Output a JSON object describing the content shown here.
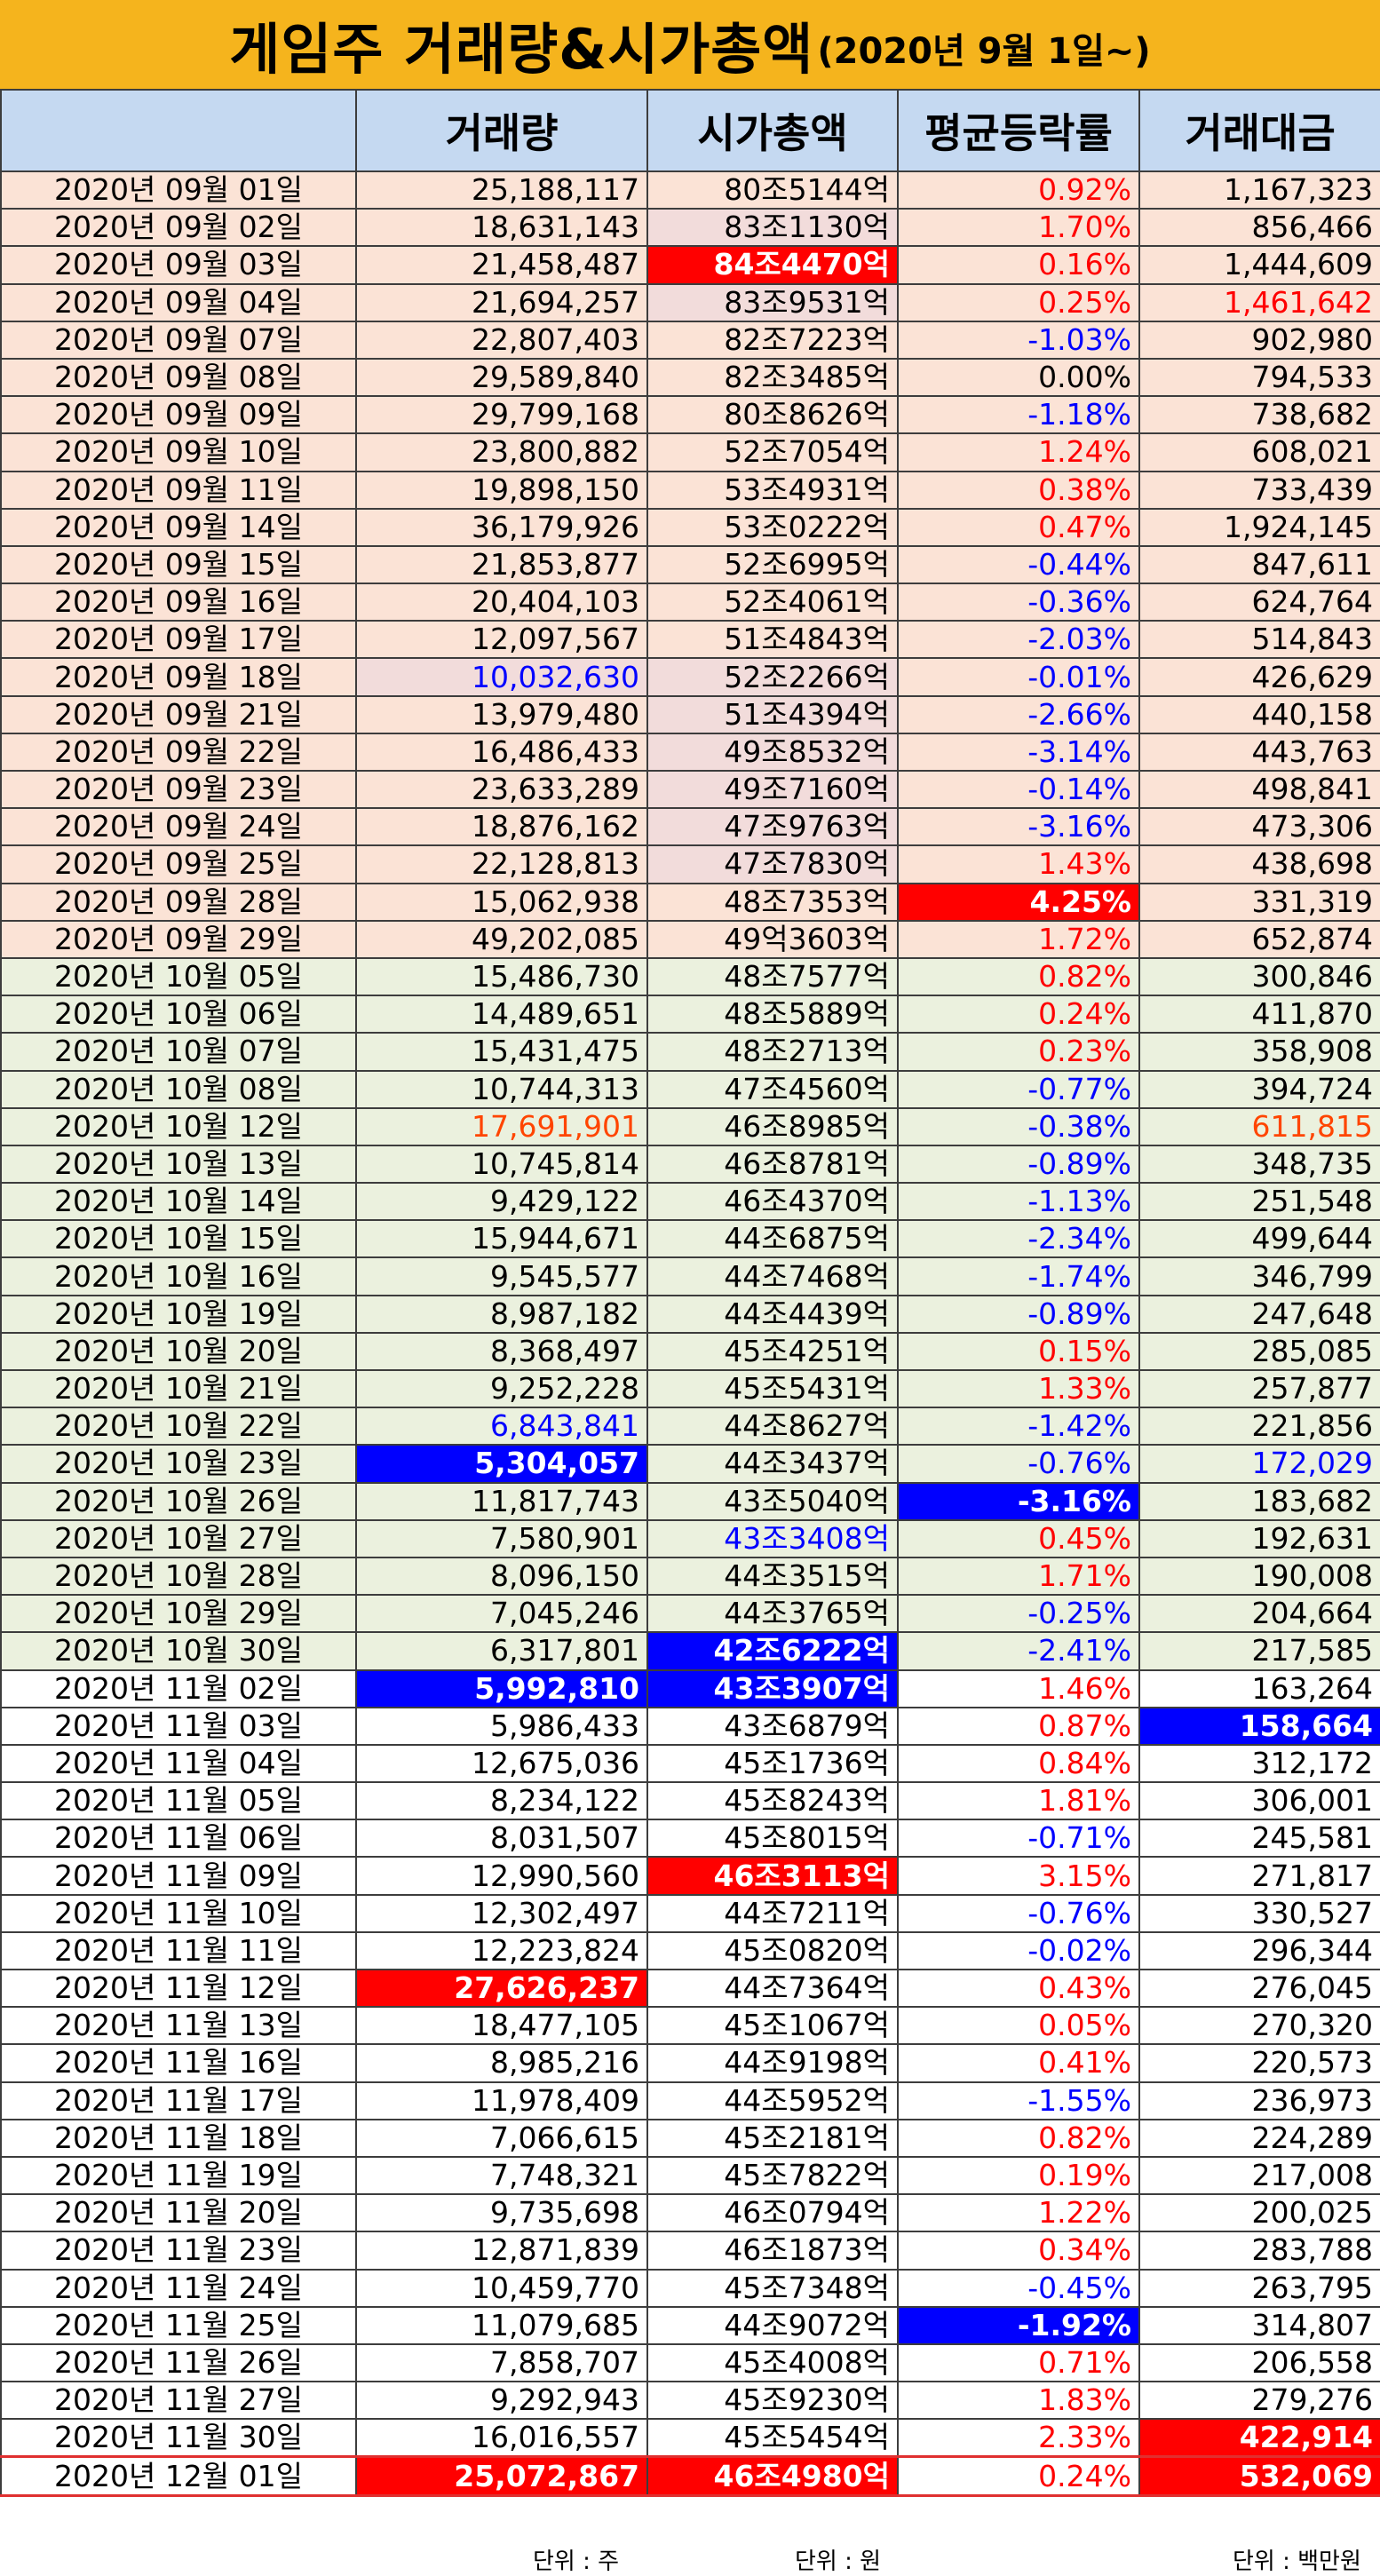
{
  "title": {
    "main": "게임주 거래량&시가총액",
    "sub": "(2020년 9월 1일~)"
  },
  "headers": [
    "",
    "거래량",
    "시가총액",
    "평균등락률",
    "거래대금"
  ],
  "colors": {
    "sep": "#fbe3d6",
    "oct": "#ebf1de",
    "nov": "#ffffff",
    "pink": "#f2dcdb",
    "red": "#ff0000",
    "blue": "#0000ff",
    "text_red": "#ff0000",
    "text_blue": "#0000ff",
    "text_orange": "#ff4500",
    "white": "#ffffff"
  },
  "rows": [
    [
      "2020년 09월 01일",
      "25,188,117",
      "80조5144억",
      "0.92%",
      "1,167,323"
    ],
    [
      "2020년 09월 02일",
      "18,631,143",
      "83조1130억",
      "1.70%",
      "856,466"
    ],
    [
      "2020년 09월 03일",
      "21,458,487",
      "84조4470억",
      "0.16%",
      "1,444,609"
    ],
    [
      "2020년 09월 04일",
      "21,694,257",
      "83조9531억",
      "0.25%",
      "1,461,642"
    ],
    [
      "2020년 09월 07일",
      "22,807,403",
      "82조7223억",
      "-1.03%",
      "902,980"
    ],
    [
      "2020년 09월 08일",
      "29,589,840",
      "82조3485억",
      "0.00%",
      "794,533"
    ],
    [
      "2020년 09월 09일",
      "29,799,168",
      "80조8626억",
      "-1.18%",
      "738,682"
    ],
    [
      "2020년 09월 10일",
      "23,800,882",
      "52조7054억",
      "1.24%",
      "608,021"
    ],
    [
      "2020년 09월 11일",
      "19,898,150",
      "53조4931억",
      "0.38%",
      "733,439"
    ],
    [
      "2020년 09월 14일",
      "36,179,926",
      "53조0222억",
      "0.47%",
      "1,924,145"
    ],
    [
      "2020년 09월 15일",
      "21,853,877",
      "52조6995억",
      "-0.44%",
      "847,611"
    ],
    [
      "2020년 09월 16일",
      "20,404,103",
      "52조4061억",
      "-0.36%",
      "624,764"
    ],
    [
      "2020년 09월 17일",
      "12,097,567",
      "51조4843억",
      "-2.03%",
      "514,843"
    ],
    [
      "2020년 09월 18일",
      "10,032,630",
      "52조2266억",
      "-0.01%",
      "426,629"
    ],
    [
      "2020년 09월 21일",
      "13,979,480",
      "51조4394억",
      "-2.66%",
      "440,158"
    ],
    [
      "2020년 09월 22일",
      "16,486,433",
      "49조8532억",
      "-3.14%",
      "443,763"
    ],
    [
      "2020년 09월 23일",
      "23,633,289",
      "49조7160억",
      "-0.14%",
      "498,841"
    ],
    [
      "2020년 09월 24일",
      "18,876,162",
      "47조9763억",
      "-3.16%",
      "473,306"
    ],
    [
      "2020년 09월 25일",
      "22,128,813",
      "47조7830억",
      "1.43%",
      "438,698"
    ],
    [
      "2020년 09월 28일",
      "15,062,938",
      "48조7353억",
      "4.25%",
      "331,319"
    ],
    [
      "2020년 09월 29일",
      "49,202,085",
      "49억3603억",
      "1.72%",
      "652,874"
    ],
    [
      "2020년 10월 05일",
      "15,486,730",
      "48조7577억",
      "0.82%",
      "300,846"
    ],
    [
      "2020년 10월 06일",
      "14,489,651",
      "48조5889억",
      "0.24%",
      "411,870"
    ],
    [
      "2020년 10월 07일",
      "15,431,475",
      "48조2713억",
      "0.23%",
      "358,908"
    ],
    [
      "2020년 10월 08일",
      "10,744,313",
      "47조4560억",
      "-0.77%",
      "394,724"
    ],
    [
      "2020년 10월 12일",
      "17,691,901",
      "46조8985억",
      "-0.38%",
      "611,815"
    ],
    [
      "2020년 10월 13일",
      "10,745,814",
      "46조8781억",
      "-0.89%",
      "348,735"
    ],
    [
      "2020년 10월 14일",
      "9,429,122",
      "46조4370억",
      "-1.13%",
      "251,548"
    ],
    [
      "2020년 10월 15일",
      "15,944,671",
      "44조6875억",
      "-2.34%",
      "499,644"
    ],
    [
      "2020년 10월 16일",
      "9,545,577",
      "44조7468억",
      "-1.74%",
      "346,799"
    ],
    [
      "2020년 10월 19일",
      "8,987,182",
      "44조4439억",
      "-0.89%",
      "247,648"
    ],
    [
      "2020년 10월 20일",
      "8,368,497",
      "45조4251억",
      "0.15%",
      "285,085"
    ],
    [
      "2020년 10월 21일",
      "9,252,228",
      "45조5431억",
      "1.33%",
      "257,877"
    ],
    [
      "2020년 10월 22일",
      "6,843,841",
      "44조8627억",
      "-1.42%",
      "221,856"
    ],
    [
      "2020년 10월 23일",
      "5,304,057",
      "44조3437억",
      "-0.76%",
      "172,029"
    ],
    [
      "2020년 10월 26일",
      "11,817,743",
      "43조5040억",
      "-3.16%",
      "183,682"
    ],
    [
      "2020년 10월 27일",
      "7,580,901",
      "43조3408억",
      "0.45%",
      "192,631"
    ],
    [
      "2020년 10월 28일",
      "8,096,150",
      "44조3515억",
      "1.71%",
      "190,008"
    ],
    [
      "2020년 10월 29일",
      "7,045,246",
      "44조3765억",
      "-0.25%",
      "204,664"
    ],
    [
      "2020년 10월 30일",
      "6,317,801",
      "42조6222억",
      "-2.41%",
      "217,585"
    ],
    [
      "2020년 11월 02일",
      "5,992,810",
      "43조3907억",
      "1.46%",
      "163,264"
    ],
    [
      "2020년 11월 03일",
      "5,986,433",
      "43조6879억",
      "0.87%",
      "158,664"
    ],
    [
      "2020년 11월 04일",
      "12,675,036",
      "45조1736억",
      "0.84%",
      "312,172"
    ],
    [
      "2020년 11월 05일",
      "8,234,122",
      "45조8243억",
      "1.81%",
      "306,001"
    ],
    [
      "2020년 11월 06일",
      "8,031,507",
      "45조8015억",
      "-0.71%",
      "245,581"
    ],
    [
      "2020년 11월 09일",
      "12,990,560",
      "46조3113억",
      "3.15%",
      "271,817"
    ],
    [
      "2020년 11월 10일",
      "12,302,497",
      "44조7211억",
      "-0.76%",
      "330,527"
    ],
    [
      "2020년 11월 11일",
      "12,223,824",
      "45조0820억",
      "-0.02%",
      "296,344"
    ],
    [
      "2020년 11월 12일",
      "27,626,237",
      "44조7364억",
      "0.43%",
      "276,045"
    ],
    [
      "2020년 11월 13일",
      "18,477,105",
      "45조1067억",
      "0.05%",
      "270,320"
    ],
    [
      "2020년 11월 16일",
      "8,985,216",
      "44조9198억",
      "0.41%",
      "220,573"
    ],
    [
      "2020년 11월 17일",
      "11,978,409",
      "44조5952억",
      "-1.55%",
      "236,973"
    ],
    [
      "2020년 11월 18일",
      "7,066,615",
      "45조2181억",
      "0.82%",
      "224,289"
    ],
    [
      "2020년 11월 19일",
      "7,748,321",
      "45조7822억",
      "0.19%",
      "217,008"
    ],
    [
      "2020년 11월 20일",
      "9,735,698",
      "46조0794억",
      "1.22%",
      "200,025"
    ],
    [
      "2020년 11월 23일",
      "12,871,839",
      "46조1873억",
      "0.34%",
      "283,788"
    ],
    [
      "2020년 11월 24일",
      "10,459,770",
      "45조7348억",
      "-0.45%",
      "263,795"
    ],
    [
      "2020년 11월 25일",
      "11,079,685",
      "44조9072억",
      "-1.92%",
      "314,807"
    ],
    [
      "2020년 11월 26일",
      "7,858,707",
      "45조4008억",
      "0.71%",
      "206,558"
    ],
    [
      "2020년 11월 27일",
      "9,292,943",
      "45조9230억",
      "1.83%",
      "279,276"
    ],
    [
      "2020년 11월 30일",
      "16,016,557",
      "45조5454억",
      "2.33%",
      "422,914"
    ],
    [
      "2020년 12월 01일",
      "25,072,867",
      "46조4980억",
      "0.24%",
      "532,069"
    ]
  ],
  "highlights": [
    [
      1,
      2,
      "pink",
      null
    ],
    [
      2,
      2,
      "red",
      "white"
    ],
    [
      3,
      2,
      "pink",
      null
    ],
    [
      3,
      4,
      null,
      "red"
    ],
    [
      13,
      1,
      "pink",
      "blue"
    ],
    [
      13,
      2,
      "pink",
      null
    ],
    [
      14,
      2,
      "pink",
      null
    ],
    [
      15,
      2,
      "pink",
      null
    ],
    [
      16,
      2,
      "pink",
      null
    ],
    [
      17,
      2,
      "pink",
      null
    ],
    [
      18,
      2,
      "pink",
      null
    ],
    [
      19,
      3,
      "red",
      "white"
    ],
    [
      25,
      1,
      null,
      "orange"
    ],
    [
      25,
      4,
      null,
      "orange"
    ],
    [
      33,
      1,
      null,
      "blue"
    ],
    [
      34,
      1,
      "blue",
      "white"
    ],
    [
      34,
      4,
      null,
      "blue"
    ],
    [
      35,
      3,
      "blue",
      "white"
    ],
    [
      36,
      2,
      null,
      "blue"
    ],
    [
      39,
      2,
      "blue",
      "white"
    ],
    [
      40,
      1,
      "blue",
      "white"
    ],
    [
      40,
      2,
      "blue",
      "white"
    ],
    [
      41,
      4,
      "blue",
      "white"
    ],
    [
      45,
      2,
      "red",
      "white"
    ],
    [
      48,
      1,
      "red",
      "white"
    ],
    [
      57,
      3,
      "blue",
      "white"
    ],
    [
      60,
      4,
      "red",
      "white"
    ],
    [
      61,
      1,
      "red",
      "white"
    ],
    [
      61,
      2,
      "red",
      "white"
    ],
    [
      61,
      4,
      "red",
      "white"
    ]
  ],
  "units": [
    "단위 : 주",
    "단위 : 원",
    "단위 : 백만원"
  ]
}
